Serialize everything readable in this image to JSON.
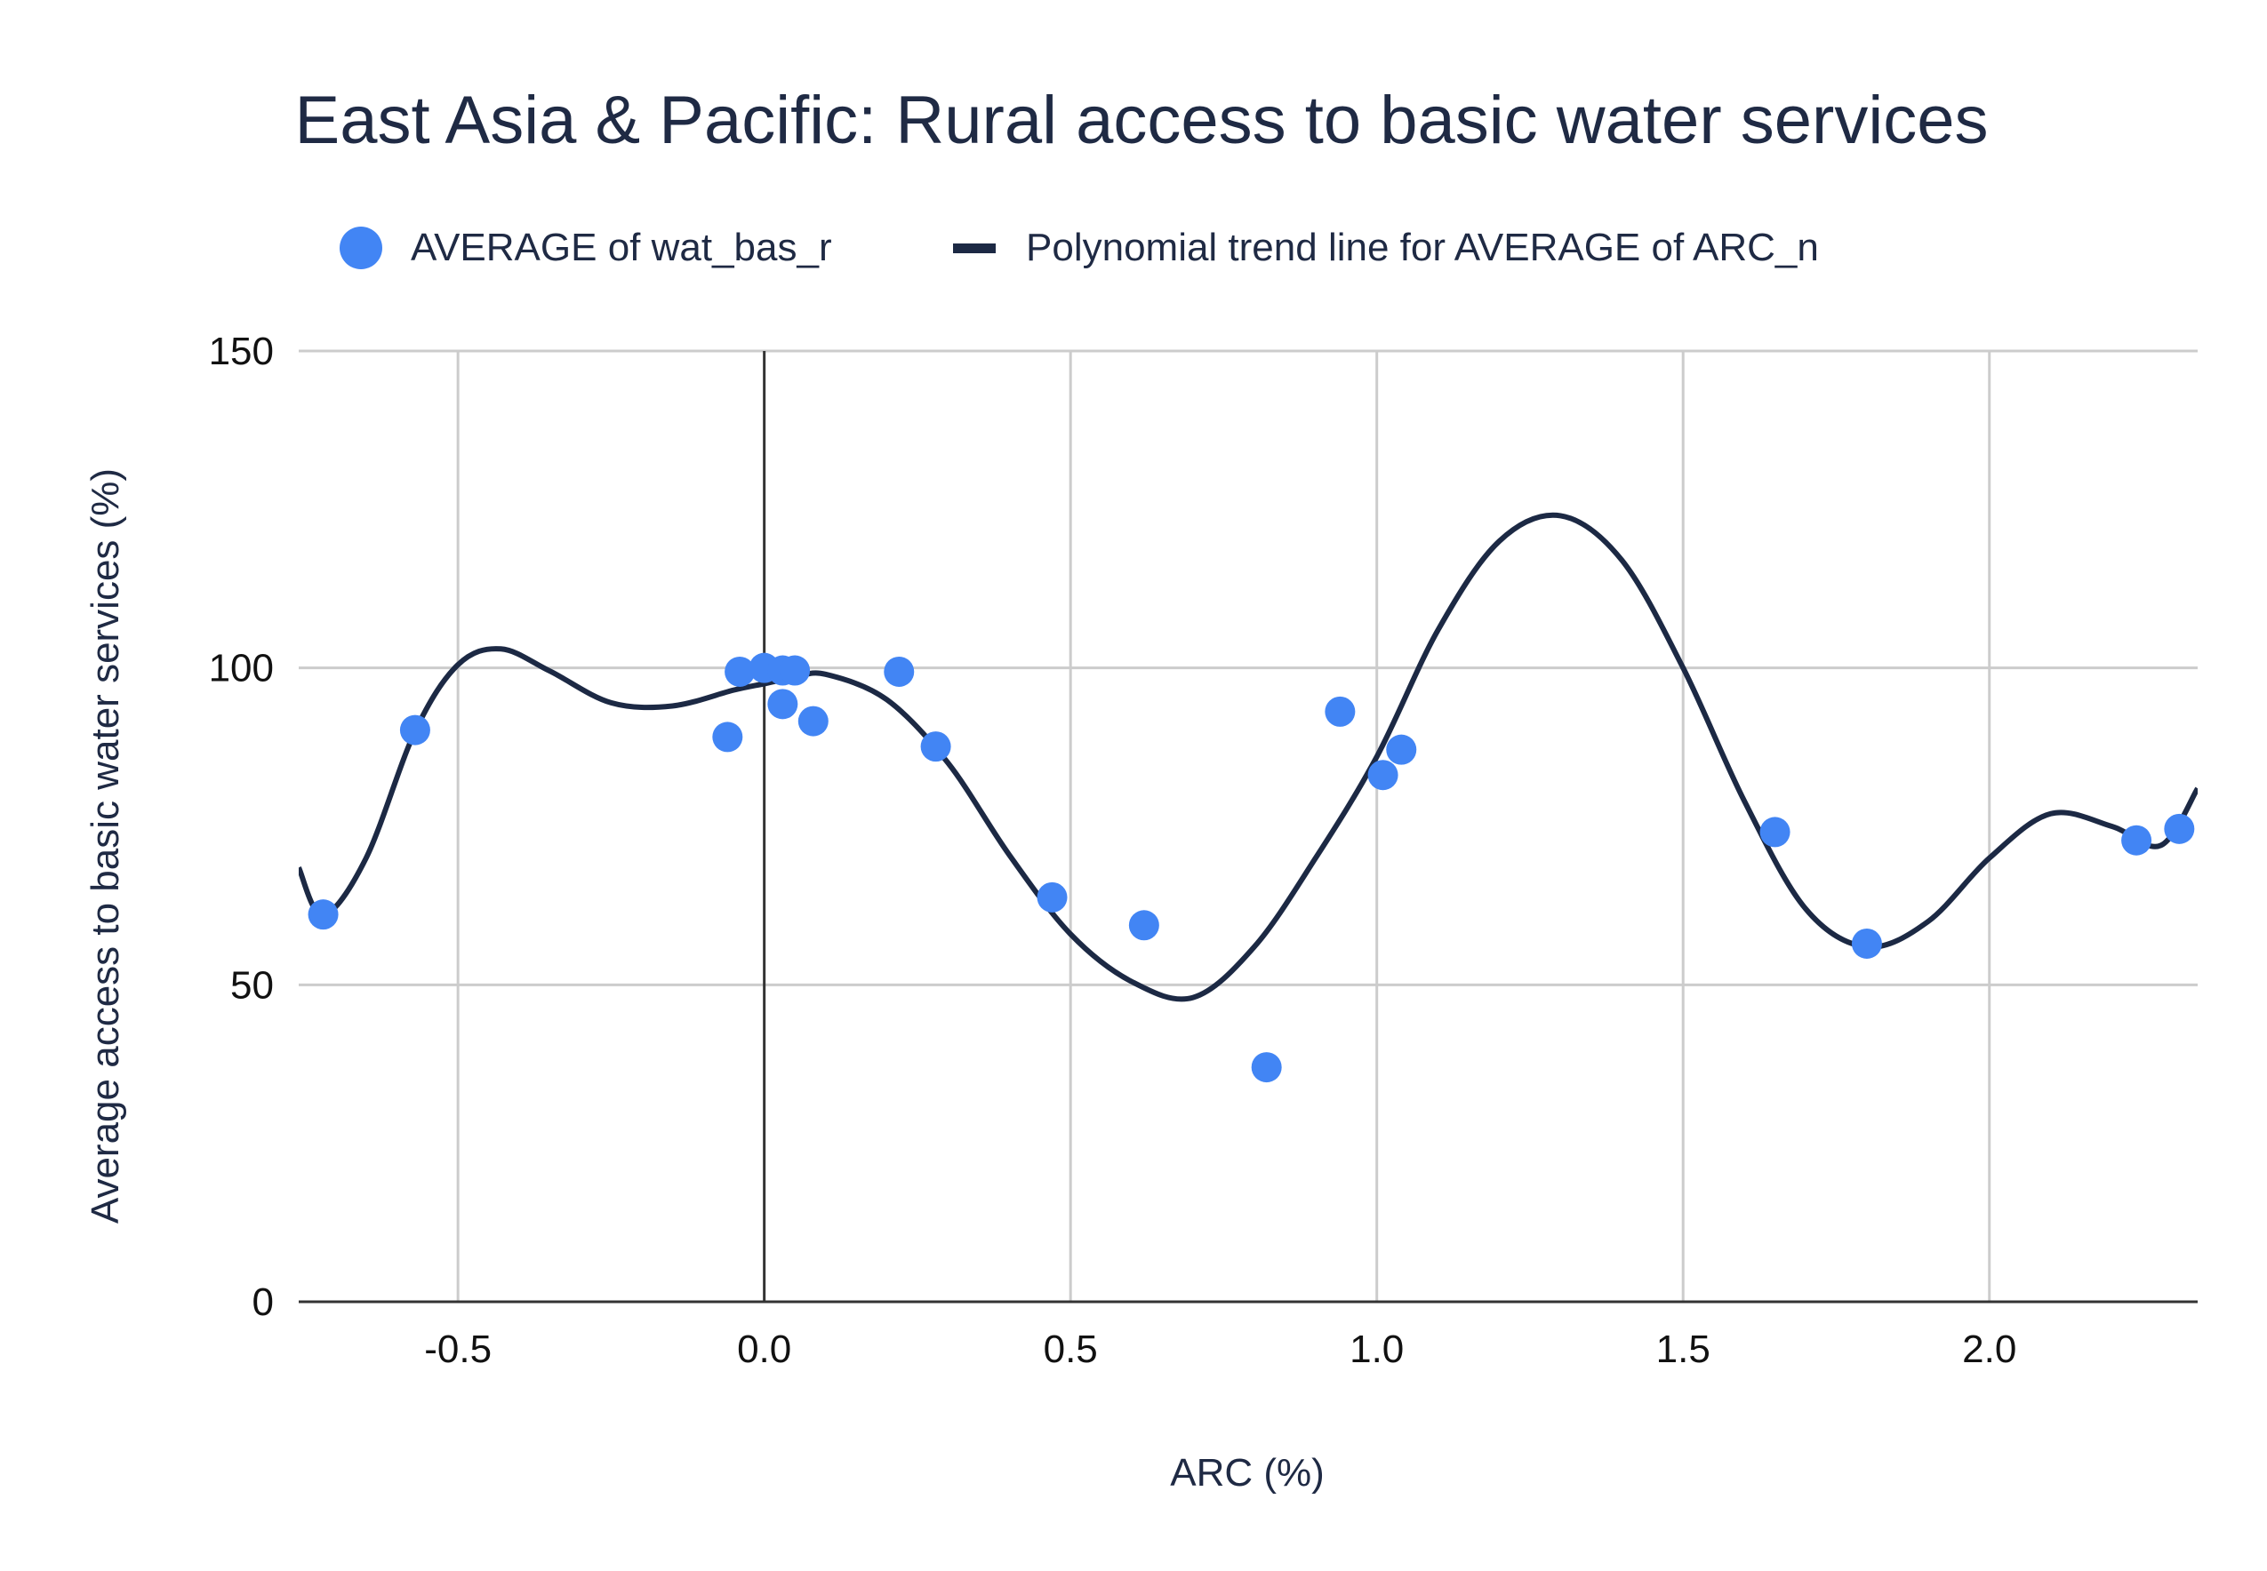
{
  "chart_data": {
    "type": "scatter",
    "title": "East Asia & Pacific: Rural access to basic water services",
    "xlabel": "ARC (%)",
    "ylabel": "Average access to basic water services (%)",
    "xlim": [
      -0.76,
      2.34
    ],
    "ylim": [
      0,
      150
    ],
    "xticks": [
      -0.5,
      0.0,
      0.5,
      1.0,
      1.5,
      2.0
    ],
    "xtick_labels": [
      "-0.5",
      "0.0",
      "0.5",
      "1.0",
      "1.5",
      "2.0"
    ],
    "yticks": [
      0,
      50,
      100,
      150
    ],
    "ytick_labels": [
      "0",
      "50",
      "100",
      "150"
    ],
    "grid": true,
    "legend_position": "top",
    "colors": {
      "points": "#4285f4",
      "trend": "#1c2944",
      "grid": "#cccccc",
      "axis": "#333333",
      "text": "#1f2a44"
    },
    "series": [
      {
        "name": "AVERAGE of wat_bas_r",
        "kind": "scatter",
        "x": [
          -0.72,
          -0.57,
          -0.06,
          -0.04,
          0.0,
          0.03,
          0.03,
          0.05,
          0.08,
          0.22,
          0.28,
          0.47,
          0.62,
          0.82,
          0.94,
          1.01,
          1.04,
          1.65,
          1.8,
          2.24,
          2.31
        ],
        "y": [
          61.1,
          90.2,
          89.1,
          99.4,
          100.0,
          99.6,
          94.3,
          99.6,
          91.6,
          99.4,
          87.6,
          63.8,
          59.4,
          37.0,
          93.1,
          83.1,
          87.1,
          74.1,
          56.5,
          72.8,
          74.6
        ]
      },
      {
        "name": "Polynomial trend line for AVERAGE of ARC_n",
        "kind": "line",
        "x": [
          -0.76,
          -0.72,
          -0.65,
          -0.57,
          -0.5,
          -0.43,
          -0.35,
          -0.25,
          -0.15,
          -0.05,
          0.0,
          0.05,
          0.1,
          0.2,
          0.3,
          0.4,
          0.5,
          0.6,
          0.7,
          0.8,
          0.9,
          1.0,
          1.1,
          1.2,
          1.3,
          1.4,
          1.5,
          1.6,
          1.7,
          1.8,
          1.9,
          2.0,
          2.1,
          2.2,
          2.28,
          2.34
        ],
        "y": [
          68.5,
          61.0,
          70.0,
          90.0,
          100.5,
          103.0,
          99.5,
          94.5,
          94.0,
          96.5,
          97.5,
          98.5,
          99.0,
          95.0,
          85.0,
          70.5,
          58.0,
          50.5,
          48.0,
          56.0,
          70.0,
          86.0,
          106.0,
          120.0,
          124.0,
          117.0,
          100.0,
          79.0,
          62.0,
          56.0,
          60.0,
          70.0,
          77.0,
          75.0,
          72.0,
          81.0
        ]
      }
    ]
  }
}
